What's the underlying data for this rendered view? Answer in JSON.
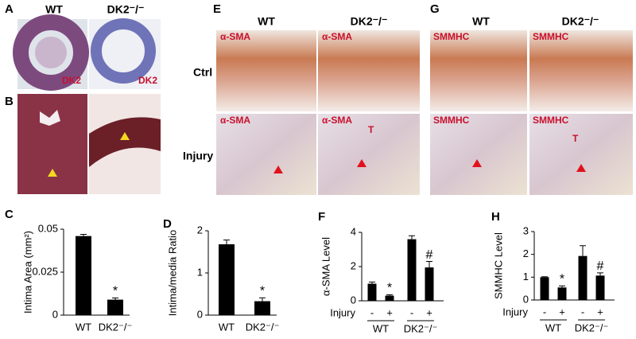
{
  "figure": {
    "panel_labels": [
      "A",
      "B",
      "C",
      "D",
      "E",
      "F",
      "G",
      "H"
    ],
    "a": {
      "columns": [
        "WT",
        "DK2⁻/⁻"
      ],
      "stain": "DK2"
    },
    "e": {
      "columns": [
        "WT",
        "DK2⁻/⁻"
      ],
      "rows": [
        "Ctrl",
        "Injury"
      ],
      "stain": "α-SMA",
      "marker": "T"
    },
    "g": {
      "columns": [
        "WT",
        "DK2⁻/⁻"
      ],
      "stain": "SMMHC",
      "marker": "T"
    }
  },
  "chart_data": [
    {
      "type": "bar",
      "y_label": "Intima Area (mm²)",
      "categories": [
        "WT",
        "DK2⁻/⁻"
      ],
      "values": [
        0.046,
        0.009
      ],
      "errors": [
        0.001,
        0.001
      ],
      "markers": [
        null,
        "*"
      ],
      "color": "#000000",
      "ylim": [
        0,
        0.05
      ],
      "yticks": [
        0,
        0.025,
        0.05
      ]
    },
    {
      "type": "bar",
      "y_label": "Intima/media Ratio",
      "categories": [
        "WT",
        "DK2⁻/⁻"
      ],
      "values": [
        1.68,
        0.33
      ],
      "errors": [
        0.1,
        0.08
      ],
      "markers": [
        null,
        "*"
      ],
      "color": "#000000",
      "ylim": [
        0,
        2
      ],
      "yticks": [
        0,
        1,
        2
      ]
    },
    {
      "type": "bar",
      "y_label": "α-SMA Level",
      "injury_label": "Injury",
      "injury": [
        "-",
        "+",
        "-",
        "+"
      ],
      "groups": [
        "WT",
        "DK2⁻/⁻"
      ],
      "values": [
        1.0,
        0.3,
        3.6,
        1.95
      ],
      "errors": [
        0.1,
        0.05,
        0.2,
        0.35
      ],
      "markers": [
        null,
        "*",
        null,
        "#"
      ],
      "color": "#000000",
      "ylim": [
        0,
        4
      ],
      "yticks": [
        0,
        2,
        4
      ]
    },
    {
      "type": "bar",
      "y_label": "SMMHC Level",
      "injury_label": "Injury",
      "injury": [
        "-",
        "+",
        "-",
        "+"
      ],
      "groups": [
        "WT",
        "DK2⁻/⁻"
      ],
      "values": [
        1.0,
        0.55,
        1.93,
        1.07
      ],
      "errors": [
        0.02,
        0.07,
        0.45,
        0.12
      ],
      "markers": [
        null,
        "*",
        null,
        "#"
      ],
      "color": "#000000",
      "ylim": [
        0,
        3
      ],
      "yticks": [
        0,
        1,
        2,
        3
      ]
    }
  ]
}
